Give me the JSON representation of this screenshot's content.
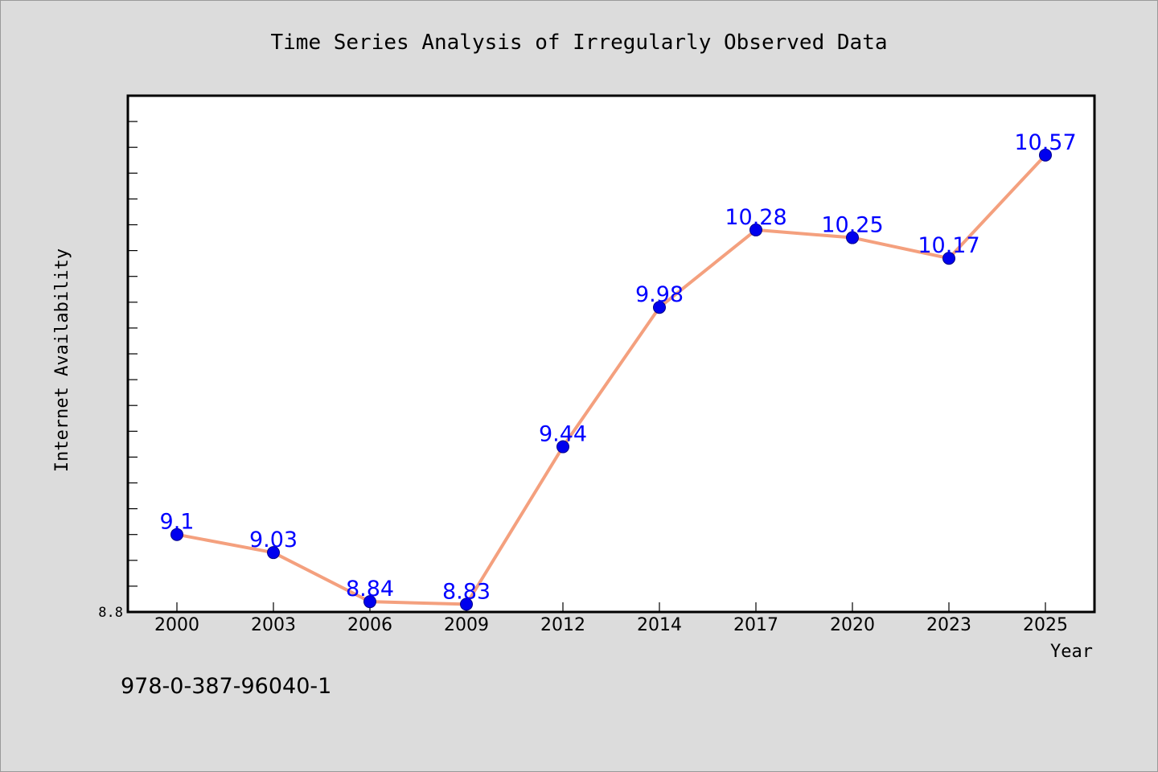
{
  "chart_data": {
    "type": "line",
    "title": "Time Series Analysis of Irregularly Observed Data",
    "xlabel": "Year",
    "ylabel": "Internet Availability",
    "categories": [
      "2000",
      "2003",
      "2006",
      "2009",
      "2012",
      "2014",
      "2017",
      "2020",
      "2023",
      "2025"
    ],
    "values": [
      9.1,
      9.03,
      8.84,
      8.83,
      9.44,
      9.98,
      10.28,
      10.25,
      10.17,
      10.57
    ],
    "data_labels": [
      "9.1",
      "9.03",
      "8.84",
      "8.83",
      "9.44",
      "9.98",
      "10.28",
      "10.25",
      "10.17",
      "10.57"
    ],
    "ylim": [
      8.8,
      10.8
    ],
    "y_tick_labels": [
      "8.8"
    ],
    "grid": false,
    "legend": "none",
    "line_color": "#f4a07e",
    "marker_color": "#0000ee",
    "label_color": "#0000ff"
  },
  "footer": {
    "isbn": "978-0-387-96040-1"
  }
}
